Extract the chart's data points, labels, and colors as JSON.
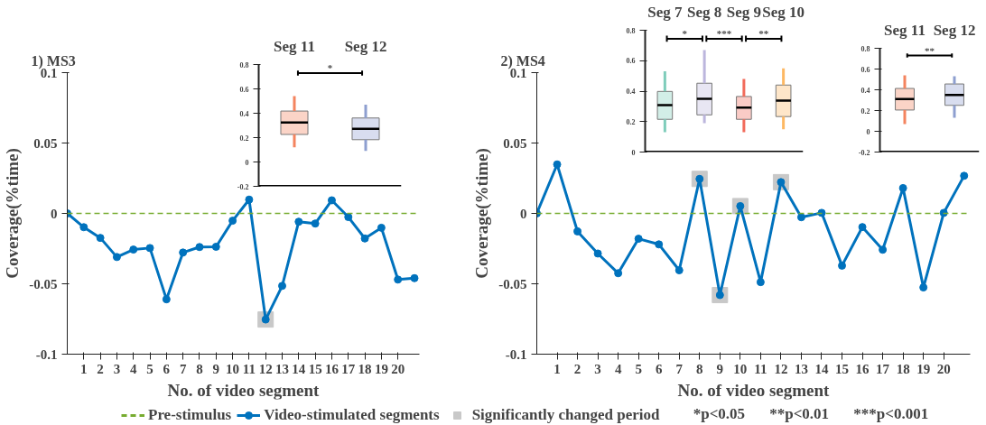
{
  "chart_data": [
    {
      "type": "line",
      "title": "1) MS3",
      "xlabel": "No. of video segment",
      "ylabel": "Coverage(%time)",
      "x": [
        0,
        1,
        2,
        3,
        4,
        5,
        6,
        7,
        8,
        9,
        10,
        11,
        12,
        13,
        14,
        15,
        16,
        17,
        18,
        19,
        20,
        21
      ],
      "xlim": [
        0,
        21.3
      ],
      "xticks": [
        1,
        2,
        3,
        4,
        5,
        6,
        7,
        8,
        9,
        10,
        11,
        12,
        13,
        14,
        15,
        16,
        17,
        18,
        19,
        20
      ],
      "ylim": [
        -0.1,
        0.1
      ],
      "yticks": [
        -0.1,
        -0.05,
        0,
        0.05,
        0.1
      ],
      "marker": "circle",
      "line_style": "solid",
      "legend": "bottom",
      "grid": false,
      "series": [
        {
          "name": "Video-stimulated segments",
          "color": "#0072bd",
          "values": [
            0,
            -0.0098,
            -0.0174,
            -0.031,
            -0.0257,
            -0.0246,
            -0.061,
            -0.0278,
            -0.0239,
            -0.0237,
            -0.0052,
            0.0098,
            -0.0754,
            -0.0515,
            -0.0059,
            -0.0072,
            0.0093,
            -0.0026,
            -0.0178,
            -0.0102,
            -0.047,
            -0.046
          ]
        },
        {
          "name": "Significantly changed period",
          "type": "scatter",
          "marker": "square",
          "color": "#c8c8c8",
          "x": [
            12
          ],
          "values": [
            -0.0754
          ]
        }
      ],
      "ref_lines": [
        {
          "axis": "y",
          "value": 0,
          "label": "Pre-stimulus",
          "color": "#77ac30",
          "line_style": "dashed"
        }
      ],
      "annotations": [
        "*p<0.05",
        "**p<0.01",
        "***p<0.001"
      ]
    },
    {
      "type": "box",
      "categories": [
        "Seg 11",
        "Seg 12"
      ],
      "ylim": [
        -0.2,
        0.8
      ],
      "yticks": [
        -0.2,
        0,
        0.2,
        0.4,
        0.6,
        0.8
      ],
      "colors": [
        "#f4845f",
        "#8e9fd0"
      ],
      "grid": false,
      "boxes": [
        {
          "low": 0.12,
          "q1": 0.226,
          "median": 0.324,
          "q3": 0.418,
          "high": 0.54
        },
        {
          "low": 0.09,
          "q1": 0.183,
          "median": 0.272,
          "q3": 0.361,
          "high": 0.47
        }
      ],
      "annotations": [
        "*"
      ]
    },
    {
      "type": "line",
      "title": "2) MS4",
      "xlabel": "No. of video segment",
      "ylabel": "Coverage(%time)",
      "x": [
        0,
        1,
        2,
        3,
        4,
        5,
        6,
        7,
        8,
        9,
        10,
        11,
        12,
        13,
        14,
        15,
        16,
        17,
        18,
        19,
        20,
        21
      ],
      "xlim": [
        0,
        21.3
      ],
      "xticks": [
        1,
        2,
        3,
        4,
        5,
        6,
        7,
        8,
        9,
        10,
        11,
        12,
        13,
        14,
        15,
        16,
        17,
        18,
        19,
        20
      ],
      "ylim": [
        -0.1,
        0.1
      ],
      "yticks": [
        -0.1,
        -0.05,
        0,
        0.05,
        0.1
      ],
      "marker": "circle",
      "line_style": "solid",
      "legend": "bottom",
      "grid": false,
      "series": [
        {
          "name": "Video-stimulated segments",
          "color": "#0072bd",
          "values": [
            0,
            0.0348,
            -0.0128,
            -0.0285,
            -0.0425,
            -0.018,
            -0.022,
            -0.0404,
            0.0245,
            -0.058,
            0.0052,
            -0.0488,
            0.0222,
            -0.0027,
            0.0004,
            -0.0371,
            -0.0097,
            -0.0258,
            0.018,
            -0.0526,
            0.0004,
            0.0267
          ]
        },
        {
          "name": "Significantly changed period",
          "type": "scatter",
          "marker": "square",
          "color": "#c8c8c8",
          "x": [
            8,
            9,
            10,
            12
          ],
          "values": [
            0.0245,
            -0.058,
            0.0052,
            0.0222
          ]
        }
      ],
      "ref_lines": [
        {
          "axis": "y",
          "value": 0,
          "color": "#77ac30",
          "line_style": "dashed"
        }
      ]
    },
    {
      "type": "box",
      "categories": [
        "Seg 7",
        "Seg 8",
        "Seg 9",
        "Seg 10"
      ],
      "ylim": [
        0,
        0.8
      ],
      "yticks": [
        0,
        0.2,
        0.4,
        0.6,
        0.8
      ],
      "colors": [
        "#7fcdbb",
        "#bcb6dd",
        "#f26b5b",
        "#fdb863"
      ],
      "grid": false,
      "boxes": [
        {
          "low": 0.13,
          "q1": 0.215,
          "median": 0.308,
          "q3": 0.398,
          "high": 0.53
        },
        {
          "low": 0.19,
          "q1": 0.244,
          "median": 0.35,
          "q3": 0.452,
          "high": 0.67
        },
        {
          "low": 0.13,
          "q1": 0.215,
          "median": 0.292,
          "q3": 0.365,
          "high": 0.48
        },
        {
          "low": 0.15,
          "q1": 0.233,
          "median": 0.338,
          "q3": 0.44,
          "high": 0.55
        }
      ],
      "annotations": [
        "*",
        "***",
        "**"
      ]
    },
    {
      "type": "box",
      "categories": [
        "Seg 11",
        "Seg 12"
      ],
      "ylim": [
        -0.2,
        0.8
      ],
      "yticks": [
        -0.2,
        0,
        0.2,
        0.4,
        0.6,
        0.8
      ],
      "colors": [
        "#f4845f",
        "#8e9fd0"
      ],
      "grid": false,
      "boxes": [
        {
          "low": 0.07,
          "q1": 0.205,
          "median": 0.31,
          "q3": 0.413,
          "high": 0.54
        },
        {
          "low": 0.13,
          "q1": 0.25,
          "median": 0.35,
          "q3": 0.456,
          "high": 0.53
        }
      ],
      "annotations": [
        "**"
      ]
    }
  ]
}
